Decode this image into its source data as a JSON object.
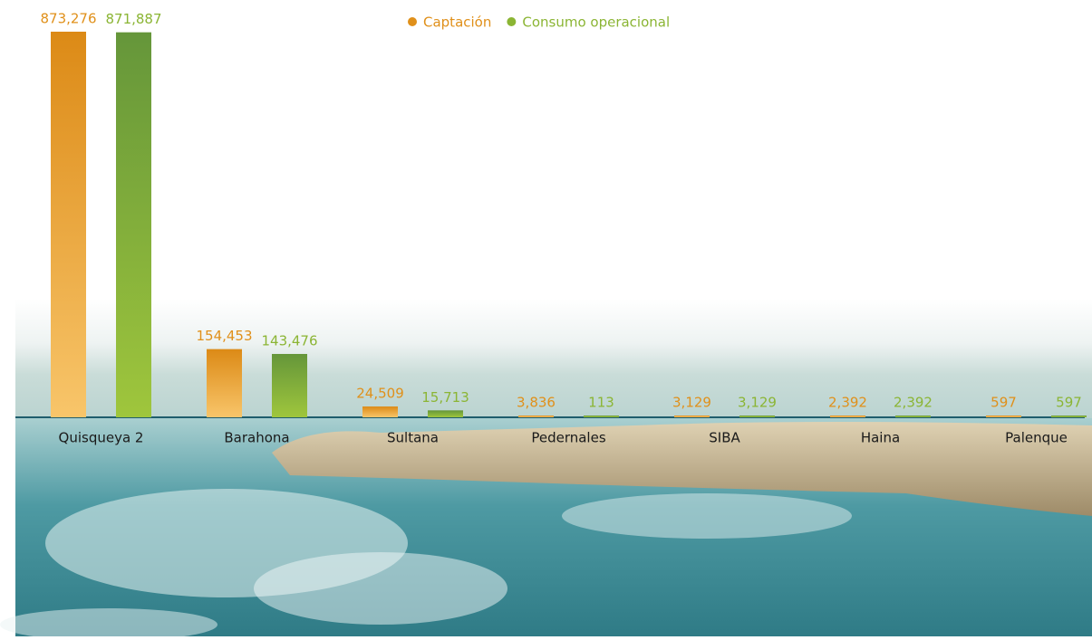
{
  "chart_data": {
    "type": "bar",
    "categories": [
      "Quisqueya 2",
      "Barahona",
      "Sultana",
      "Pedernales",
      "SIBA",
      "Haina",
      "Palenque"
    ],
    "series": [
      {
        "name": "Captación",
        "color": "#e0901a",
        "values": [
          873276,
          154453,
          24509,
          3836,
          3129,
          2392,
          597
        ],
        "value_labels": [
          "873,276",
          "154,453",
          "24,509",
          "3,836",
          "3,129",
          "2,392",
          "597"
        ]
      },
      {
        "name": "Consumo operacional",
        "color": "#8bb534",
        "values": [
          871887,
          143476,
          15713,
          113,
          3129,
          2392,
          597
        ],
        "value_labels": [
          "871,887",
          "143,476",
          "15,713",
          "113",
          "3,129",
          "2,392",
          "597"
        ]
      }
    ],
    "legend": "top"
  }
}
